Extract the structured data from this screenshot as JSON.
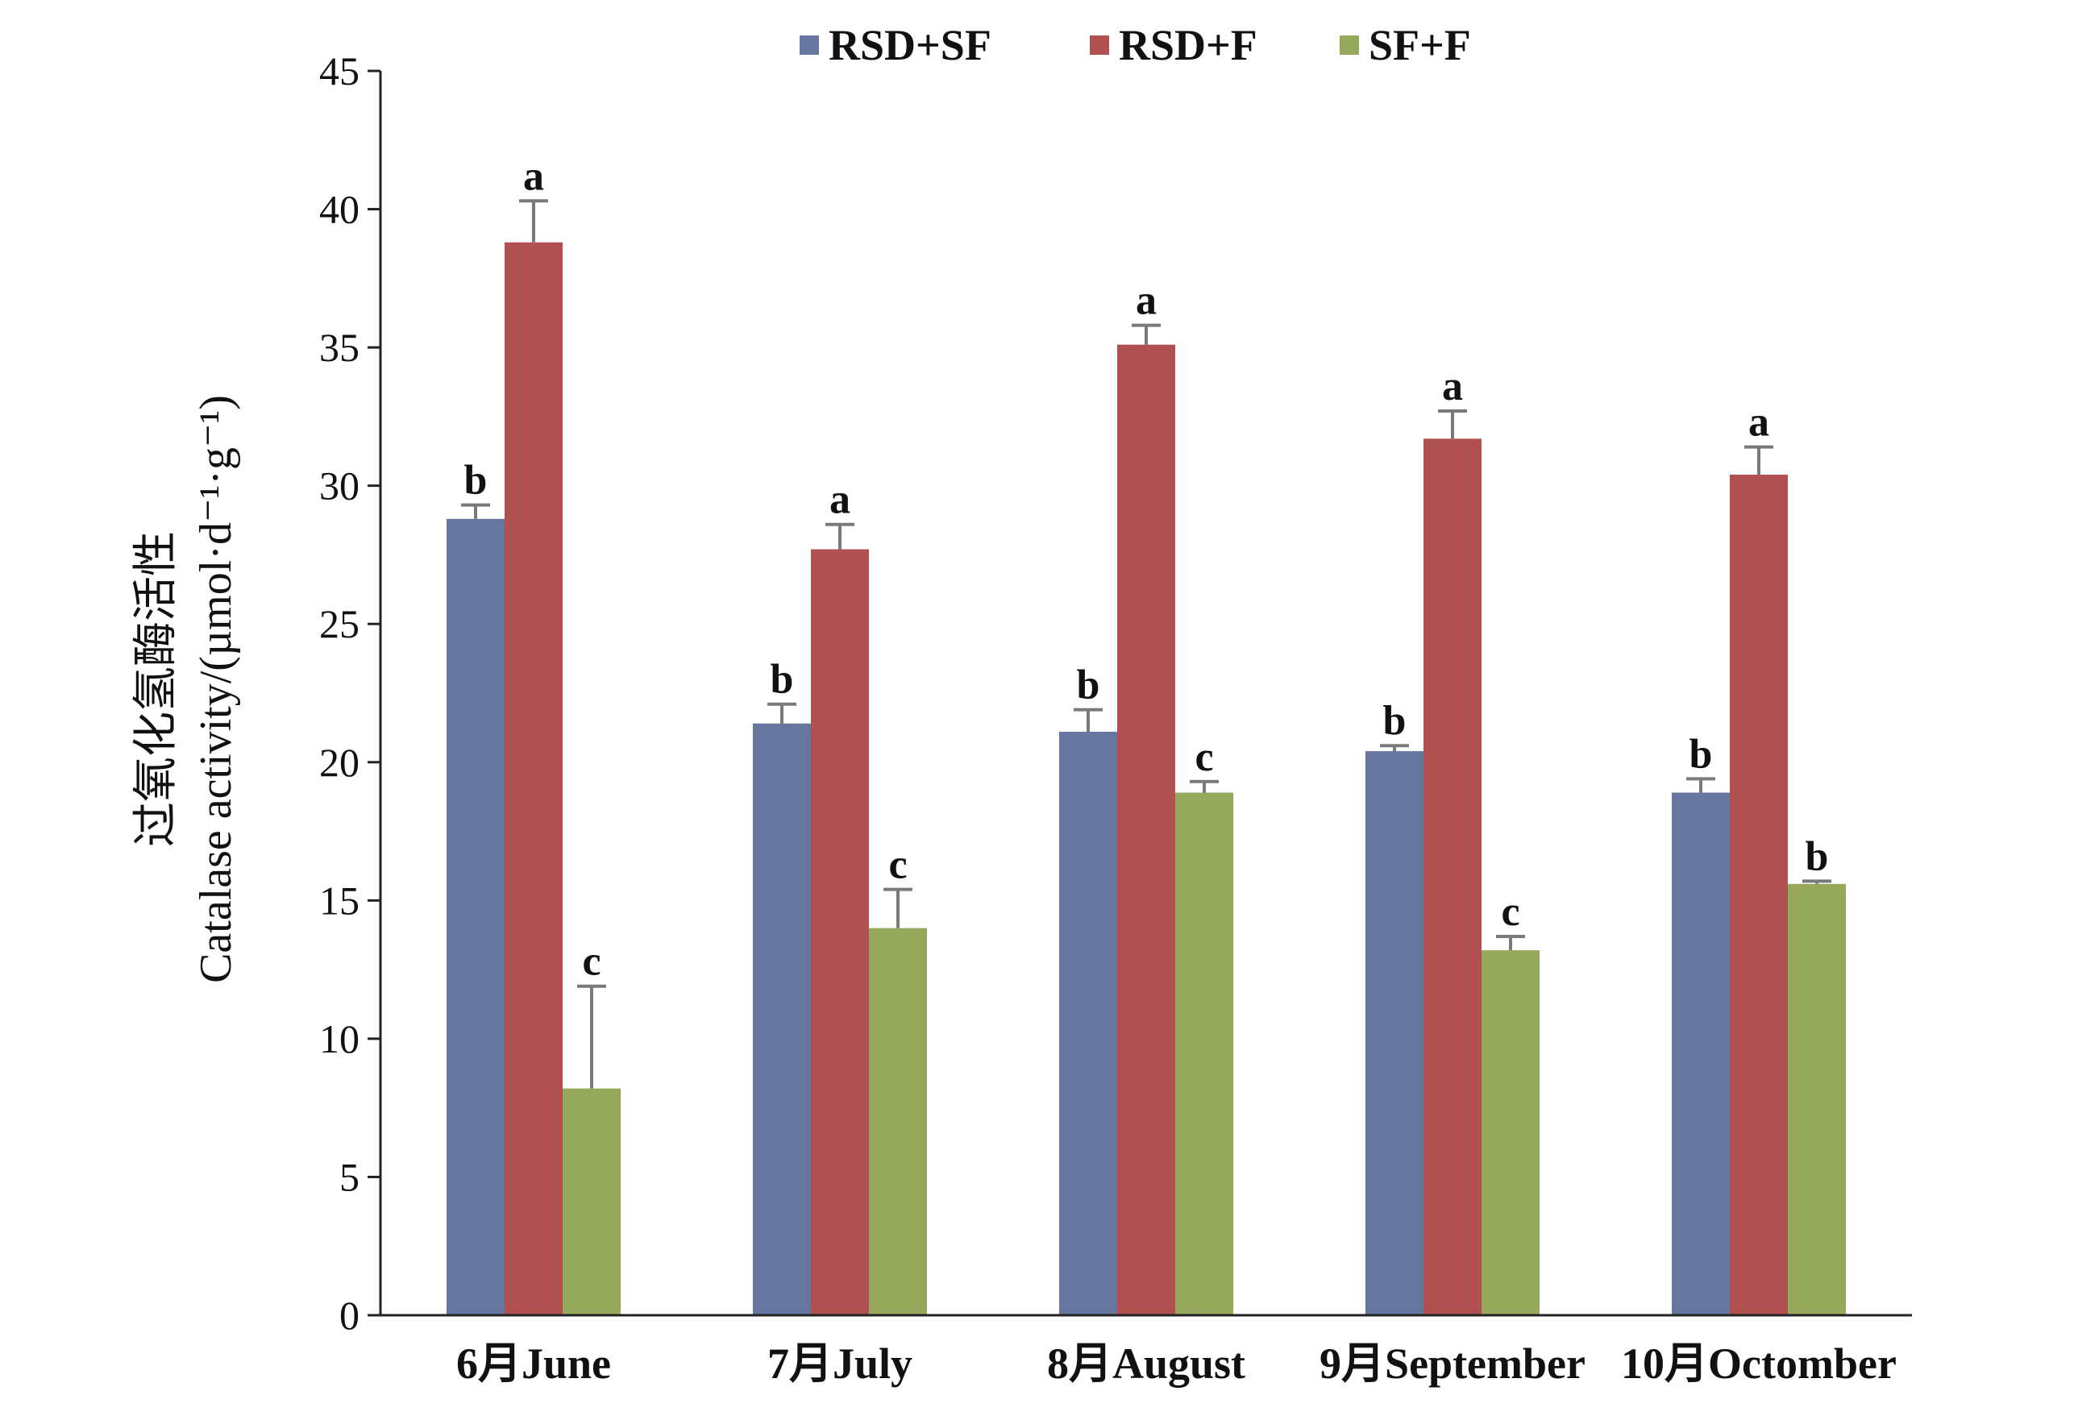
{
  "chart_data": {
    "type": "bar",
    "ylabel_zh": "过氧化氢酶活性",
    "ylabel_en": "Catalase activity/(µmol·d⁻¹·g⁻¹)",
    "ylim": [
      0,
      45
    ],
    "yticks": [
      0,
      5,
      10,
      15,
      20,
      25,
      30,
      35,
      40,
      45
    ],
    "categories": [
      "6月June",
      "7月July",
      "8月August",
      "9月September",
      "10月Octomber"
    ],
    "legend_position": "top",
    "grid": false,
    "series": [
      {
        "name": "RSD+SF",
        "color": "#66769f",
        "values": [
          28.8,
          21.4,
          21.1,
          20.4,
          18.9
        ],
        "errors": [
          0.5,
          0.7,
          0.8,
          0.2,
          0.5
        ],
        "letters": [
          "b",
          "b",
          "b",
          "b",
          "b"
        ]
      },
      {
        "name": "RSD+F",
        "color": "#b05051",
        "values": [
          38.8,
          27.7,
          35.1,
          31.7,
          30.4
        ],
        "errors": [
          1.5,
          0.9,
          0.7,
          1.0,
          1.0
        ],
        "letters": [
          "a",
          "a",
          "a",
          "a",
          "a"
        ]
      },
      {
        "name": "SF+F",
        "color": "#95a85c",
        "values": [
          8.2,
          14.0,
          18.9,
          13.2,
          15.6
        ],
        "errors": [
          3.7,
          1.4,
          0.4,
          0.5,
          0.1
        ],
        "letters": [
          "c",
          "c",
          "c",
          "c",
          "b"
        ]
      }
    ]
  }
}
